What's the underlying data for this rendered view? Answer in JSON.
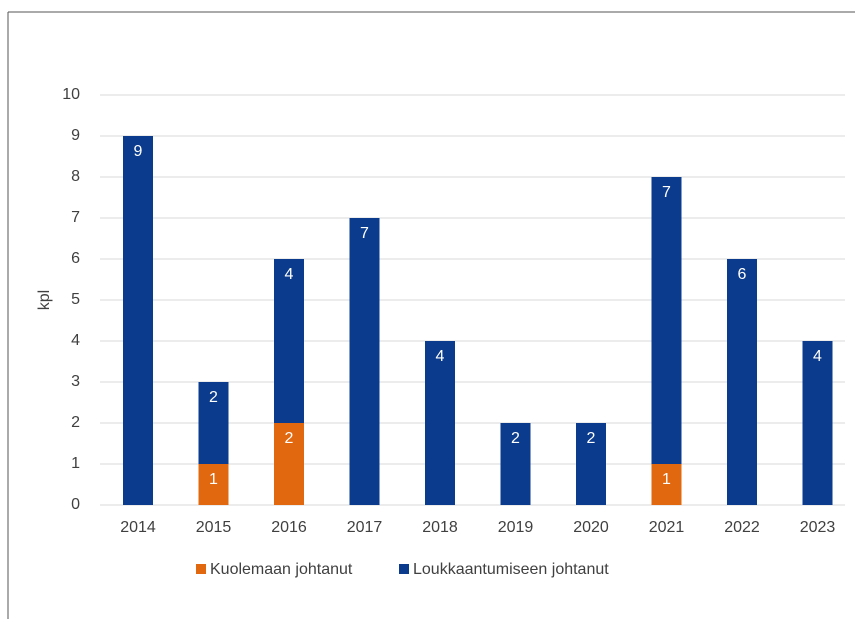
{
  "chart_data": {
    "type": "stacked_bar",
    "y_label": "kpl",
    "categories": [
      "2014",
      "2015",
      "2016",
      "2017",
      "2018",
      "2019",
      "2020",
      "2021",
      "2022",
      "2023"
    ],
    "series": [
      {
        "name": "Kuolemaan johtanut",
        "color": "#e2680f",
        "values": [
          0,
          1,
          2,
          0,
          0,
          0,
          0,
          1,
          0,
          0
        ]
      },
      {
        "name": "Loukkaantumiseen johtanut",
        "color": "#0b3b8c",
        "values": [
          9,
          2,
          4,
          7,
          4,
          2,
          2,
          7,
          6,
          4
        ]
      }
    ],
    "ylim": [
      0,
      10
    ],
    "yticks": [
      0,
      1,
      2,
      3,
      4,
      5,
      6,
      7,
      8,
      9,
      10
    ],
    "grid": true,
    "legend": "bottom"
  }
}
